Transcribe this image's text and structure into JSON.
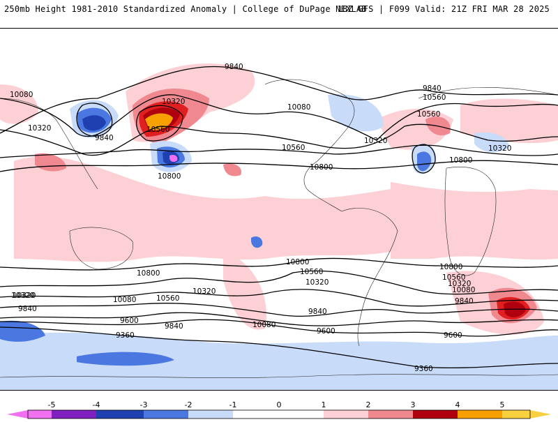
{
  "header": {
    "title_left": "250mb Height 1981-2010 Standardized Anomaly | College of DuPage NEXLAB",
    "title_right": "18Z GFS | F099 Valid: 21Z FRI MAR 28 2025"
  },
  "map": {
    "colors": {
      "neg5": "#f070f0",
      "neg4": "#8020c0",
      "neg3": "#1e40b0",
      "neg2": "#4a78e0",
      "neg1": "#c8dcfa",
      "pos1": "#fcd0d4",
      "pos2": "#f08890",
      "pos3": "#e02020",
      "pos4": "#b00010",
      "pos5": "#f8a000",
      "pos6": "#f8d040"
    },
    "contour_labels": [
      "9840",
      "10080",
      "10320",
      "9840",
      "10320",
      "10560",
      "10800",
      "10080",
      "9840",
      "10560",
      "10560",
      "10320",
      "10800",
      "10320",
      "10800",
      "10560",
      "10320",
      "10800",
      "10560",
      "10320",
      "10080",
      "10320",
      "10080",
      "9840",
      "9600",
      "9840",
      "10080",
      "9840",
      "9600",
      "9360",
      "9360",
      "10800",
      "10560",
      "10320",
      "10080",
      "9840",
      "9600"
    ]
  },
  "colorbar": {
    "tick_labels": [
      "-5",
      "-4",
      "-3",
      "-2",
      "-1",
      "0",
      "1",
      "2",
      "3",
      "4",
      "5"
    ]
  }
}
